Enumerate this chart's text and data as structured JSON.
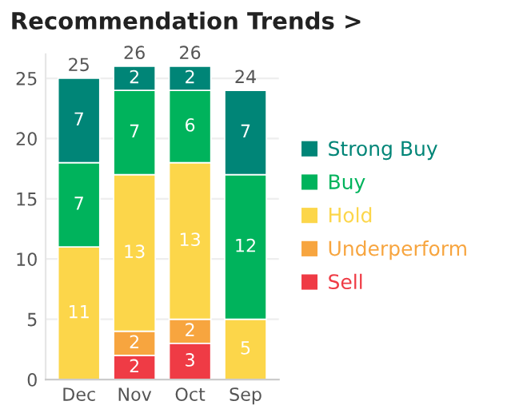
{
  "chart_data": {
    "type": "bar",
    "title": "Recommendation Trends >",
    "categories": [
      "Dec",
      "Nov",
      "Oct",
      "Sep"
    ],
    "stacked": true,
    "series": [
      {
        "name": "Sell",
        "color": "#ef3b45",
        "values": [
          null,
          2,
          3,
          null
        ]
      },
      {
        "name": "Underperform",
        "color": "#f7a53f",
        "values": [
          null,
          2,
          2,
          null
        ]
      },
      {
        "name": "Hold",
        "color": "#fcd64a",
        "values": [
          11,
          13,
          13,
          5
        ]
      },
      {
        "name": "Buy",
        "color": "#00b35c",
        "values": [
          7,
          7,
          6,
          12
        ]
      },
      {
        "name": "Strong Buy",
        "color": "#008577",
        "values": [
          7,
          2,
          2,
          7
        ]
      }
    ],
    "totals": [
      "25",
      "26",
      "26",
      "24"
    ],
    "data_labels": true,
    "ylim": [
      0,
      27
    ],
    "yticks": [
      0,
      5,
      10,
      15,
      20,
      25
    ],
    "grid": "y",
    "legend": "right"
  }
}
